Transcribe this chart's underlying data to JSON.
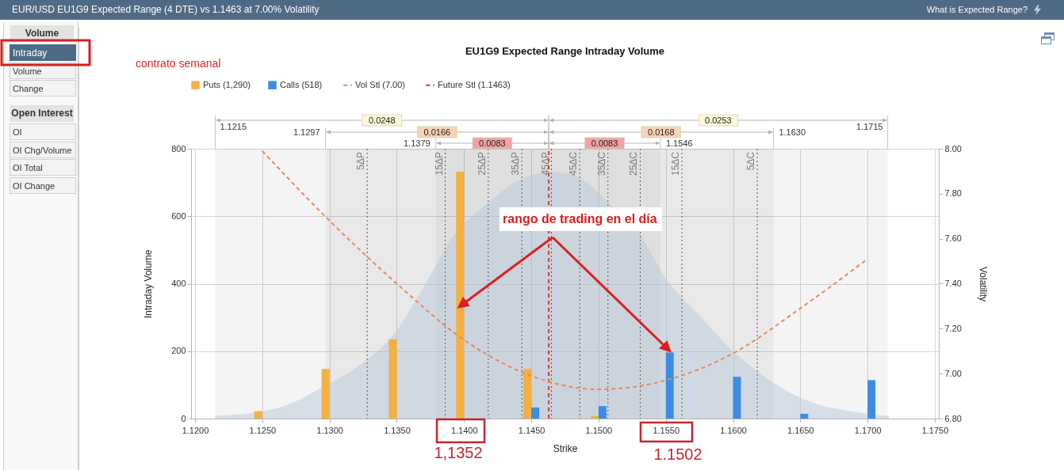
{
  "chart_data": {
    "type": "bar",
    "title": "EU1G9 Expected Range Intraday Volume",
    "subtitle": "EUR/USD EU1G9 Expected Range (4 DTE) vs 1.1463 at 7.00% Volatility",
    "xlabel": "Strike",
    "ylabel": "Intraday Volume",
    "y2label": "Volatility",
    "x": [
      1.125,
      1.13,
      1.135,
      1.14,
      1.145,
      1.15,
      1.155,
      1.16,
      1.165,
      1.17
    ],
    "series": [
      {
        "name": "Puts (1,290)",
        "color": "#f5b041",
        "values": [
          22,
          147,
          235,
          732,
          147,
          7,
          null,
          null,
          null,
          null
        ]
      },
      {
        "name": "Calls (518)",
        "color": "#3d8ce4",
        "values": [
          null,
          null,
          null,
          null,
          33,
          37,
          196,
          124,
          14,
          114
        ]
      },
      {
        "name": "Vol Stl (7.00)",
        "type": "line",
        "axis": "y2",
        "color": "#e8875a",
        "values": [
          7.99,
          7.68,
          7.4,
          7.15,
          6.99,
          6.93,
          6.97,
          7.09,
          7.29,
          7.51
        ]
      },
      {
        "name": "Future Stl (1.1463)",
        "type": "line",
        "color": "#e0342e",
        "x": [
          1.1463,
          1.1463
        ],
        "values": [
          0,
          800
        ]
      },
      {
        "type": "area",
        "color": "#b8cad9",
        "x": [
          1.1215,
          1.1254,
          1.1274,
          1.1292,
          1.1324,
          1.1349,
          1.1371,
          1.139,
          1.1418,
          1.144,
          1.1466,
          1.1486,
          1.1507,
          1.1531,
          1.155,
          1.1572,
          1.1601,
          1.1618,
          1.1651,
          1.1697,
          1.1716
        ],
        "values": [
          8,
          24,
          49,
          88,
          163,
          256,
          397,
          530,
          640,
          705,
          732,
          714,
          642,
          545,
          415,
          318,
          197,
          140,
          60,
          16,
          7
        ]
      }
    ],
    "xlim": [
      1.12,
      1.175
    ],
    "xticks": [
      {
        "value": 1.12,
        "label": "1.1200"
      },
      {
        "value": 1.125,
        "label": "1.1250"
      },
      {
        "value": 1.13,
        "label": "1.1300"
      },
      {
        "value": 1.135,
        "label": "1.1350"
      },
      {
        "value": 1.14,
        "label": "1.1400"
      },
      {
        "value": 1.145,
        "label": "1.1450"
      },
      {
        "value": 1.15,
        "label": "1.1500"
      },
      {
        "value": 1.155,
        "label": "1.1550"
      },
      {
        "value": 1.16,
        "label": "1.1600"
      },
      {
        "value": 1.165,
        "label": "1.1650"
      },
      {
        "value": 1.17,
        "label": "1.1700"
      },
      {
        "value": 1.175,
        "label": "1.1750"
      }
    ],
    "ylim": [
      0,
      800
    ],
    "yticks": [
      0,
      200,
      400,
      600,
      800
    ],
    "y2lim": [
      6.8,
      8
    ],
    "y2ticks": [
      {
        "value": 6.8,
        "label": "6.80"
      },
      {
        "value": 7,
        "label": "7.00"
      },
      {
        "value": 7.2,
        "label": "7.20"
      },
      {
        "value": 7.4,
        "label": "7.40"
      },
      {
        "value": 7.6,
        "label": "7.60"
      },
      {
        "value": 7.8,
        "label": "7.80"
      },
      {
        "value": 8,
        "label": "8.00"
      }
    ],
    "grid": true,
    "legend": "top",
    "line_style": "dashed",
    "bands": [
      {
        "axis": "x",
        "from": 1.1215,
        "to": 1.1463,
        "label": "0.0248",
        "color": "#f4f4f4"
      },
      {
        "axis": "x",
        "from": 1.1463,
        "to": 1.1715,
        "label": "0.0253",
        "color": "#f4f4f4"
      },
      {
        "axis": "x",
        "from": 1.1297,
        "to": 1.1463,
        "label": "0.0166",
        "color": "#f4f4f4"
      },
      {
        "axis": "x",
        "from": 1.1463,
        "to": 1.163,
        "label": "0.0168",
        "color": "#f4f4f4"
      },
      {
        "axis": "x",
        "from": 1.1379,
        "to": 1.1463,
        "label": "0.0083",
        "color": "#f4f4f4"
      },
      {
        "axis": "x",
        "from": 1.1463,
        "to": 1.1546,
        "label": "0.0083",
        "color": "#f4f4f4"
      }
    ],
    "ref_lines": [
      {
        "axis": "x",
        "value": 1.1328,
        "label": "5ΔP",
        "color": "#555555",
        "line_style": "dotted"
      },
      {
        "axis": "x",
        "value": 1.1386,
        "label": "15ΔP",
        "color": "#555555",
        "line_style": "dotted"
      },
      {
        "axis": "x",
        "value": 1.1418,
        "label": "25ΔP",
        "color": "#555555",
        "line_style": "dotted"
      },
      {
        "axis": "x",
        "value": 1.1443,
        "label": "35ΔP",
        "color": "#555555",
        "line_style": "dotted"
      },
      {
        "axis": "x",
        "value": 1.1465,
        "label": "45ΔP",
        "color": "#555555",
        "line_style": "dotted"
      },
      {
        "axis": "x",
        "value": 1.1486,
        "label": "45ΔC",
        "color": "#555555",
        "line_style": "dotted"
      },
      {
        "axis": "x",
        "value": 1.1507,
        "label": "35ΔC",
        "color": "#555555",
        "line_style": "dotted"
      },
      {
        "axis": "x",
        "value": 1.1531,
        "label": "25ΔC",
        "color": "#555555",
        "line_style": "dotted"
      },
      {
        "axis": "x",
        "value": 1.1562,
        "label": "15ΔC",
        "color": "#555555",
        "line_style": "dotted"
      },
      {
        "axis": "x",
        "value": 1.1618,
        "label": "5ΔC",
        "color": "#555555",
        "line_style": "dotted"
      }
    ],
    "annotations": [
      "What is Expected Range?",
      "Volume",
      "Intraday",
      "Volume",
      "Change",
      "Open Interest",
      "OI",
      "OI Chg/Volume",
      "OI Total",
      "OI Change",
      "contrato semanal",
      {
        "text": "rango de trading en el día",
        "x": 1.155,
        "y": 196
      },
      "1,1352",
      "1.1502",
      "1.1215",
      "1.1715",
      "1.1297",
      "1.1630",
      "1.1379",
      "1.1546"
    ]
  }
}
